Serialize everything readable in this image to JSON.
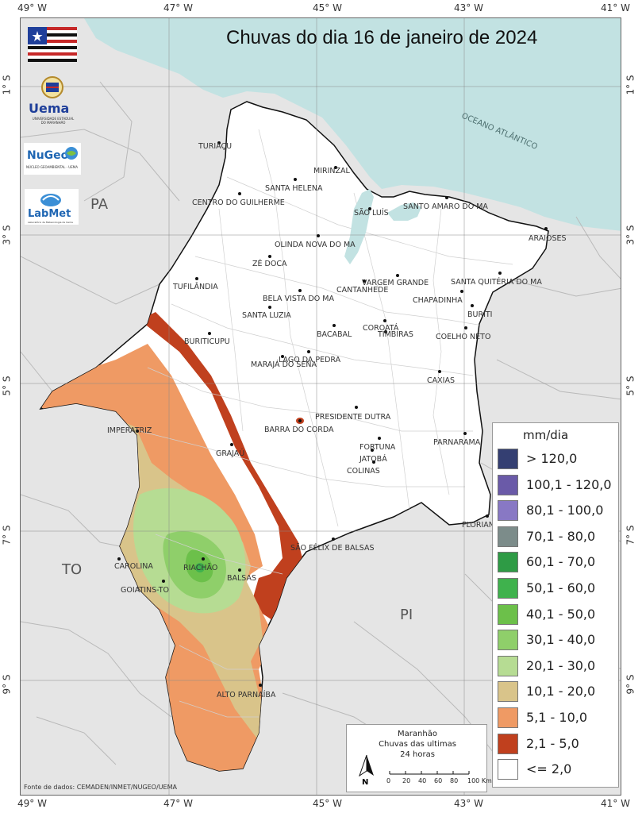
{
  "title": "Chuvas do dia 16 de janeiro de 2024",
  "axes": {
    "longitudes": [
      "49° W",
      "47° W",
      "45° W",
      "43° W",
      "41° W"
    ],
    "latitudes": [
      "1° S",
      "3° S",
      "5° S",
      "7° S",
      "9° S"
    ]
  },
  "regions": {
    "pa": "PA",
    "to": "TO",
    "pi": "PI",
    "ocean": "OCEANO ATLÂNTICO"
  },
  "cities": [
    {
      "name": "TURIAÇU"
    },
    {
      "name": "MIRINZAL"
    },
    {
      "name": "SANTA HELENA"
    },
    {
      "name": "CENTRO DO GUILHERME"
    },
    {
      "name": "SÃO LUÍS"
    },
    {
      "name": "SANTO AMARO DO MA"
    },
    {
      "name": "ARAIOSES"
    },
    {
      "name": "OLINDA NOVA DO MA"
    },
    {
      "name": "ZÉ DOCA"
    },
    {
      "name": "VARGEM GRANDE"
    },
    {
      "name": "SANTA QUITÉRIA DO MA"
    },
    {
      "name": "TUFILÂNDIA"
    },
    {
      "name": "BELA VISTA DO MA"
    },
    {
      "name": "CANTANHEDE"
    },
    {
      "name": "CHAPADINHA"
    },
    {
      "name": "SANTA LUZIA"
    },
    {
      "name": "BURITI"
    },
    {
      "name": "COROATÁ"
    },
    {
      "name": "BURITICUPU"
    },
    {
      "name": "BACABAL"
    },
    {
      "name": "TIMBIRAS"
    },
    {
      "name": "COELHO NETO"
    },
    {
      "name": "LAGO DA PEDRA"
    },
    {
      "name": "MARAJÁ DO SENA"
    },
    {
      "name": "CAXIAS"
    },
    {
      "name": "PRESIDENTE DUTRA"
    },
    {
      "name": "IMPERATRIZ"
    },
    {
      "name": "BARRA DO CORDA"
    },
    {
      "name": "GRAJAÚ"
    },
    {
      "name": "FORTUNA"
    },
    {
      "name": "JATOBÁ"
    },
    {
      "name": "PARNARAMA"
    },
    {
      "name": "COLINAS"
    },
    {
      "name": "FLORIANO-PI"
    },
    {
      "name": "SÃO FÉLIX DE BALSAS"
    },
    {
      "name": "CAROLINA"
    },
    {
      "name": "RIACHÃO"
    },
    {
      "name": "BALSAS"
    },
    {
      "name": "GOIATINS-TO"
    },
    {
      "name": "ALTO PARNAÍBA"
    }
  ],
  "logos": {
    "uema": "Uema",
    "uema_sub": "UNIVERSIDADE ESTADUAL DO MARANHÃO",
    "nugeo": "NuGeo",
    "nugeo_sub": "NÚCLEO GEOAMBIENTAL - UEMA",
    "labmet": "LabMet",
    "labmet_sub": "Laboratório de Meteorologia da Uema"
  },
  "legend": {
    "title": "mm/dia",
    "items": [
      {
        "label": "> 120,0",
        "color": "#343f72"
      },
      {
        "label": "100,1 - 120,0",
        "color": "#6a5aa8"
      },
      {
        "label": "80,1 - 100,0",
        "color": "#8878c4"
      },
      {
        "label": "70,1 - 80,0",
        "color": "#7c8c8a"
      },
      {
        "label": "60,1 - 70,0",
        "color": "#2e9b45"
      },
      {
        "label": "50,1 - 60,0",
        "color": "#3fb24d"
      },
      {
        "label": "40,1 - 50,0",
        "color": "#6cc04a"
      },
      {
        "label": "30,1 - 40,0",
        "color": "#8fcf6a"
      },
      {
        "label": "20,1 - 30,0",
        "color": "#b6dc93"
      },
      {
        "label": "10,1 - 20,0",
        "color": "#d9c48a"
      },
      {
        "label": "5,1 - 10,0",
        "color": "#ef9a64"
      },
      {
        "label": "2,1 - 5,0",
        "color": "#c0401e"
      },
      {
        "label": "<= 2,0",
        "color": "#ffffff"
      }
    ]
  },
  "scalebar": {
    "line1": "Maranhão",
    "line2": "Chuvas das ultimas",
    "line3": "24 horas",
    "north": "N",
    "ticks": [
      "0",
      "20",
      "40",
      "60",
      "80",
      "100 Km"
    ]
  },
  "source": "Fonte de dados: CEMADEN/INMET/NUGEO/UEMA",
  "colors": {
    "ocean": "#c2e2e2",
    "land": "#e5e5e5",
    "state": "#ffffff"
  }
}
